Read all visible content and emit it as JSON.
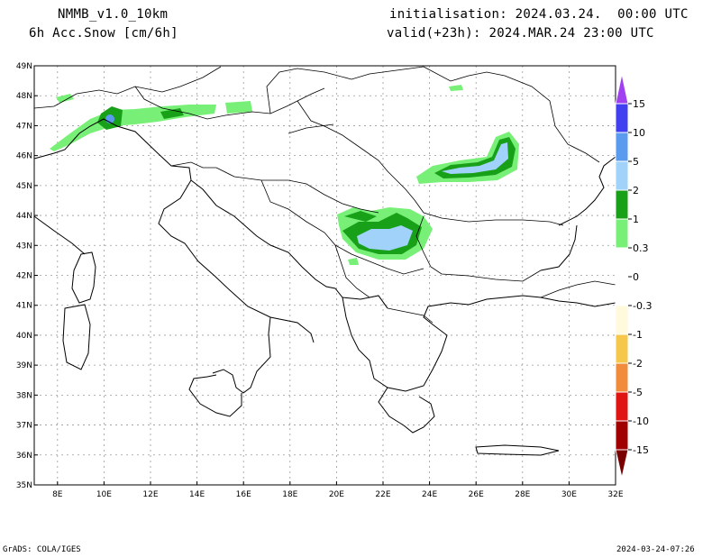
{
  "header": {
    "model": "NMMB_v1.0_10km",
    "parameter": "6h Acc.Snow [cm/6h]",
    "initialisation": "initialisation: 2024.03.24.  00:00 UTC",
    "valid": "valid(+23h): 2024.MAR.24 23:00 UTC"
  },
  "footer": {
    "software": "GrADS: COLA/IGES",
    "timestamp": "2024-03-24-07:26"
  },
  "map": {
    "lon_range": [
      7,
      32
    ],
    "lat_range": [
      35,
      49
    ],
    "lon_ticks": [
      "8E",
      "10E",
      "12E",
      "14E",
      "16E",
      "18E",
      "20E",
      "22E",
      "24E",
      "26E",
      "28E",
      "30E",
      "32E"
    ],
    "lat_ticks": [
      "35N",
      "36N",
      "37N",
      "38N",
      "39N",
      "40N",
      "41N",
      "42N",
      "43N",
      "44N",
      "45N",
      "46N",
      "47N",
      "48N",
      "49N"
    ],
    "grid": true
  },
  "colorbar": {
    "labels": [
      "15",
      "10",
      "5",
      "2",
      "1",
      "0.3",
      "0",
      "-0.3",
      "-1",
      "-2",
      "-5",
      "-10",
      "-15"
    ],
    "colors": {
      "top_arrow": "#a040f0",
      "c10_15": "#4040f0",
      "c5_10": "#5a9bef",
      "c2_5": "#a0d2fa",
      "c1_2": "#18a018",
      "c03_1": "#78f078",
      "zero": "#ffffff",
      "n03_1": "#fffadc",
      "n1_2": "#f5c84b",
      "n2_5": "#f08c3c",
      "n5_10": "#e11414",
      "n10_15": "#a00000",
      "bottom_arrow": "#7a0000"
    }
  }
}
